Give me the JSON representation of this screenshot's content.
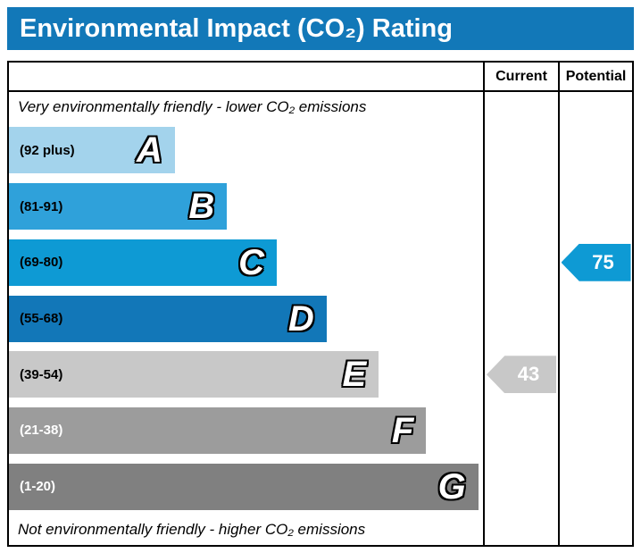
{
  "title": "Environmental Impact (CO₂) Rating",
  "header": {
    "current": "Current",
    "potential": "Potential"
  },
  "notes": {
    "top": "Very environmentally friendly - lower CO₂ emissions",
    "bottom": "Not environmentally friendly - higher CO₂ emissions"
  },
  "colors": {
    "title_bar": "#1278b8",
    "current_arrow": "#c8c8c8",
    "potential_arrow": "#0e9ad4",
    "border": "#000000"
  },
  "bands": [
    {
      "letter": "A",
      "range": "(92 plus)",
      "color": "#a3d3ec",
      "text_color": "#000000",
      "width_pct": 35
    },
    {
      "letter": "B",
      "range": "(81-91)",
      "color": "#2fa1da",
      "text_color": "#000000",
      "width_pct": 46
    },
    {
      "letter": "C",
      "range": "(69-80)",
      "color": "#0e9ad4",
      "text_color": "#000000",
      "width_pct": 56.5
    },
    {
      "letter": "D",
      "range": "(55-68)",
      "color": "#1277b8",
      "text_color": "#000000",
      "width_pct": 67
    },
    {
      "letter": "E",
      "range": "(39-54)",
      "color": "#c8c8c8",
      "text_color": "#000000",
      "width_pct": 78
    },
    {
      "letter": "F",
      "range": "(21-38)",
      "color": "#9c9c9c",
      "text_color": "#ffffff",
      "width_pct": 88
    },
    {
      "letter": "G",
      "range": "(1-20)",
      "color": "#808080",
      "text_color": "#ffffff",
      "width_pct": 99
    }
  ],
  "current": {
    "value": "43",
    "band": "E",
    "band_index": 4
  },
  "potential": {
    "value": "75",
    "band": "C",
    "band_index": 2
  },
  "chart_data": {
    "type": "bar",
    "title": "Environmental Impact (CO₂) Rating",
    "categories": [
      "A (92 plus)",
      "B (81-91)",
      "C (69-80)",
      "D (55-68)",
      "E (39-54)",
      "F (21-38)",
      "G (1-20)"
    ],
    "band_ranges": [
      [
        92,
        100
      ],
      [
        81,
        91
      ],
      [
        69,
        80
      ],
      [
        55,
        68
      ],
      [
        39,
        54
      ],
      [
        21,
        38
      ],
      [
        1,
        20
      ]
    ],
    "series": [
      {
        "name": "Current",
        "value": 43,
        "band": "E"
      },
      {
        "name": "Potential",
        "value": 75,
        "band": "C"
      }
    ],
    "annotations": [
      "Very environmentally friendly - lower CO₂ emissions",
      "Not environmentally friendly - higher CO₂ emissions"
    ],
    "legend_position": "none",
    "grid": false
  }
}
